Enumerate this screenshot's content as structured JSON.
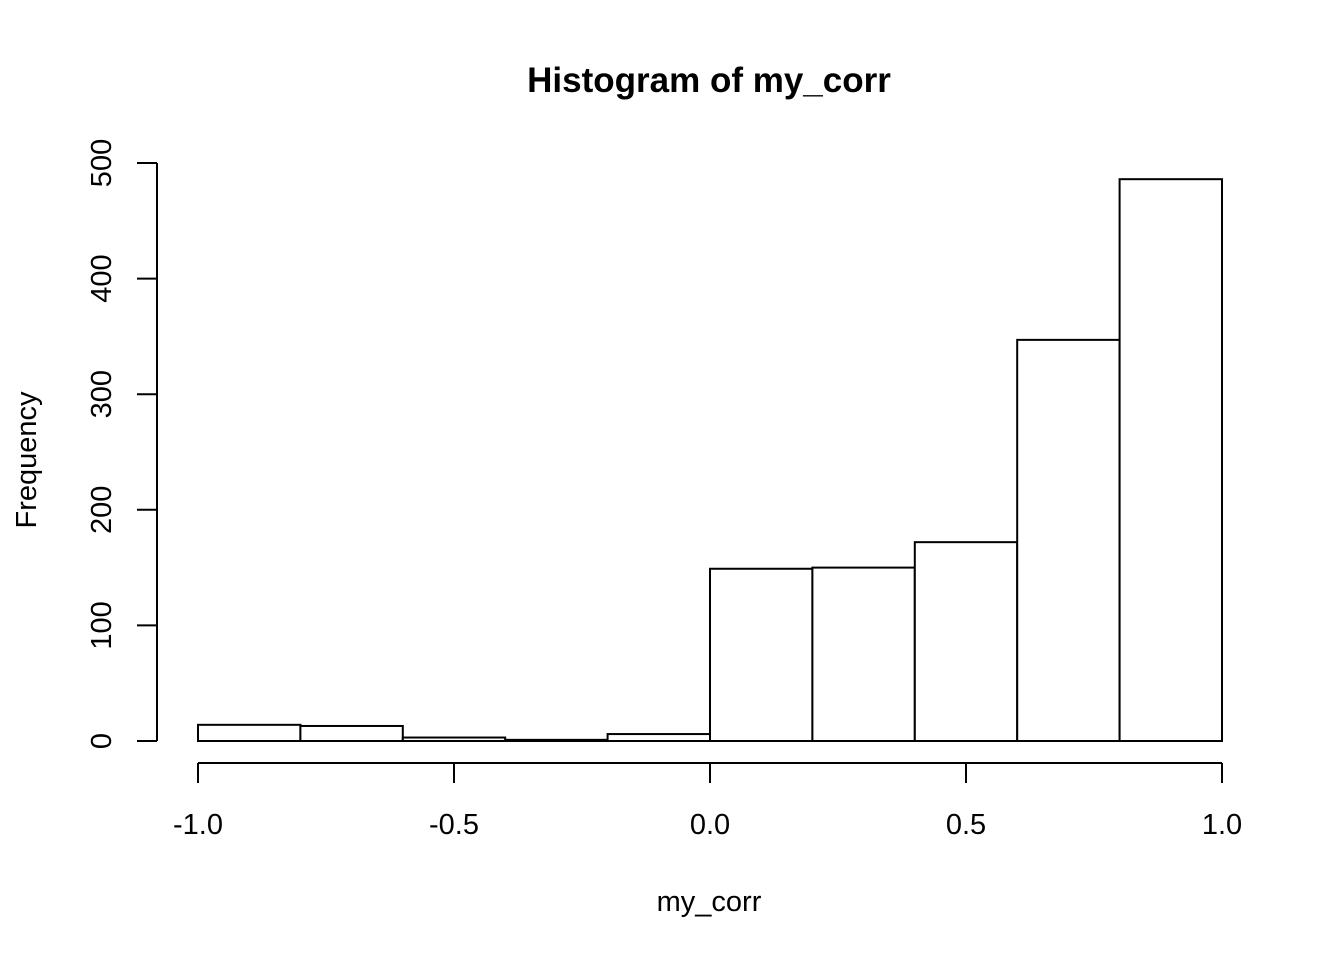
{
  "chart_data": {
    "type": "bar",
    "title": "Histogram of my_corr",
    "xlabel": "my_corr",
    "ylabel": "Frequency",
    "bins": [
      {
        "start": -1.0,
        "end": -0.8,
        "value": 14
      },
      {
        "start": -0.8,
        "end": -0.6,
        "value": 13
      },
      {
        "start": -0.6,
        "end": -0.4,
        "value": 3
      },
      {
        "start": -0.4,
        "end": -0.2,
        "value": 1
      },
      {
        "start": -0.2,
        "end": 0.0,
        "value": 6
      },
      {
        "start": 0.0,
        "end": 0.2,
        "value": 149
      },
      {
        "start": 0.2,
        "end": 0.4,
        "value": 150
      },
      {
        "start": 0.4,
        "end": 0.6,
        "value": 172
      },
      {
        "start": 0.6,
        "end": 0.8,
        "value": 347
      },
      {
        "start": 0.8,
        "end": 1.0,
        "value": 486
      }
    ],
    "xlim": [
      -1.0,
      1.0
    ],
    "ylim": [
      0,
      500
    ],
    "xticks": [
      -1.0,
      -0.5,
      0.0,
      0.5,
      1.0
    ],
    "xtick_labels": [
      "-1.0",
      "-0.5",
      "0.0",
      "0.5",
      "1.0"
    ],
    "yticks": [
      0,
      100,
      200,
      300,
      400,
      500
    ],
    "ytick_labels": [
      "0",
      "100",
      "200",
      "300",
      "400",
      "500"
    ],
    "grid": false,
    "legend": "none"
  }
}
